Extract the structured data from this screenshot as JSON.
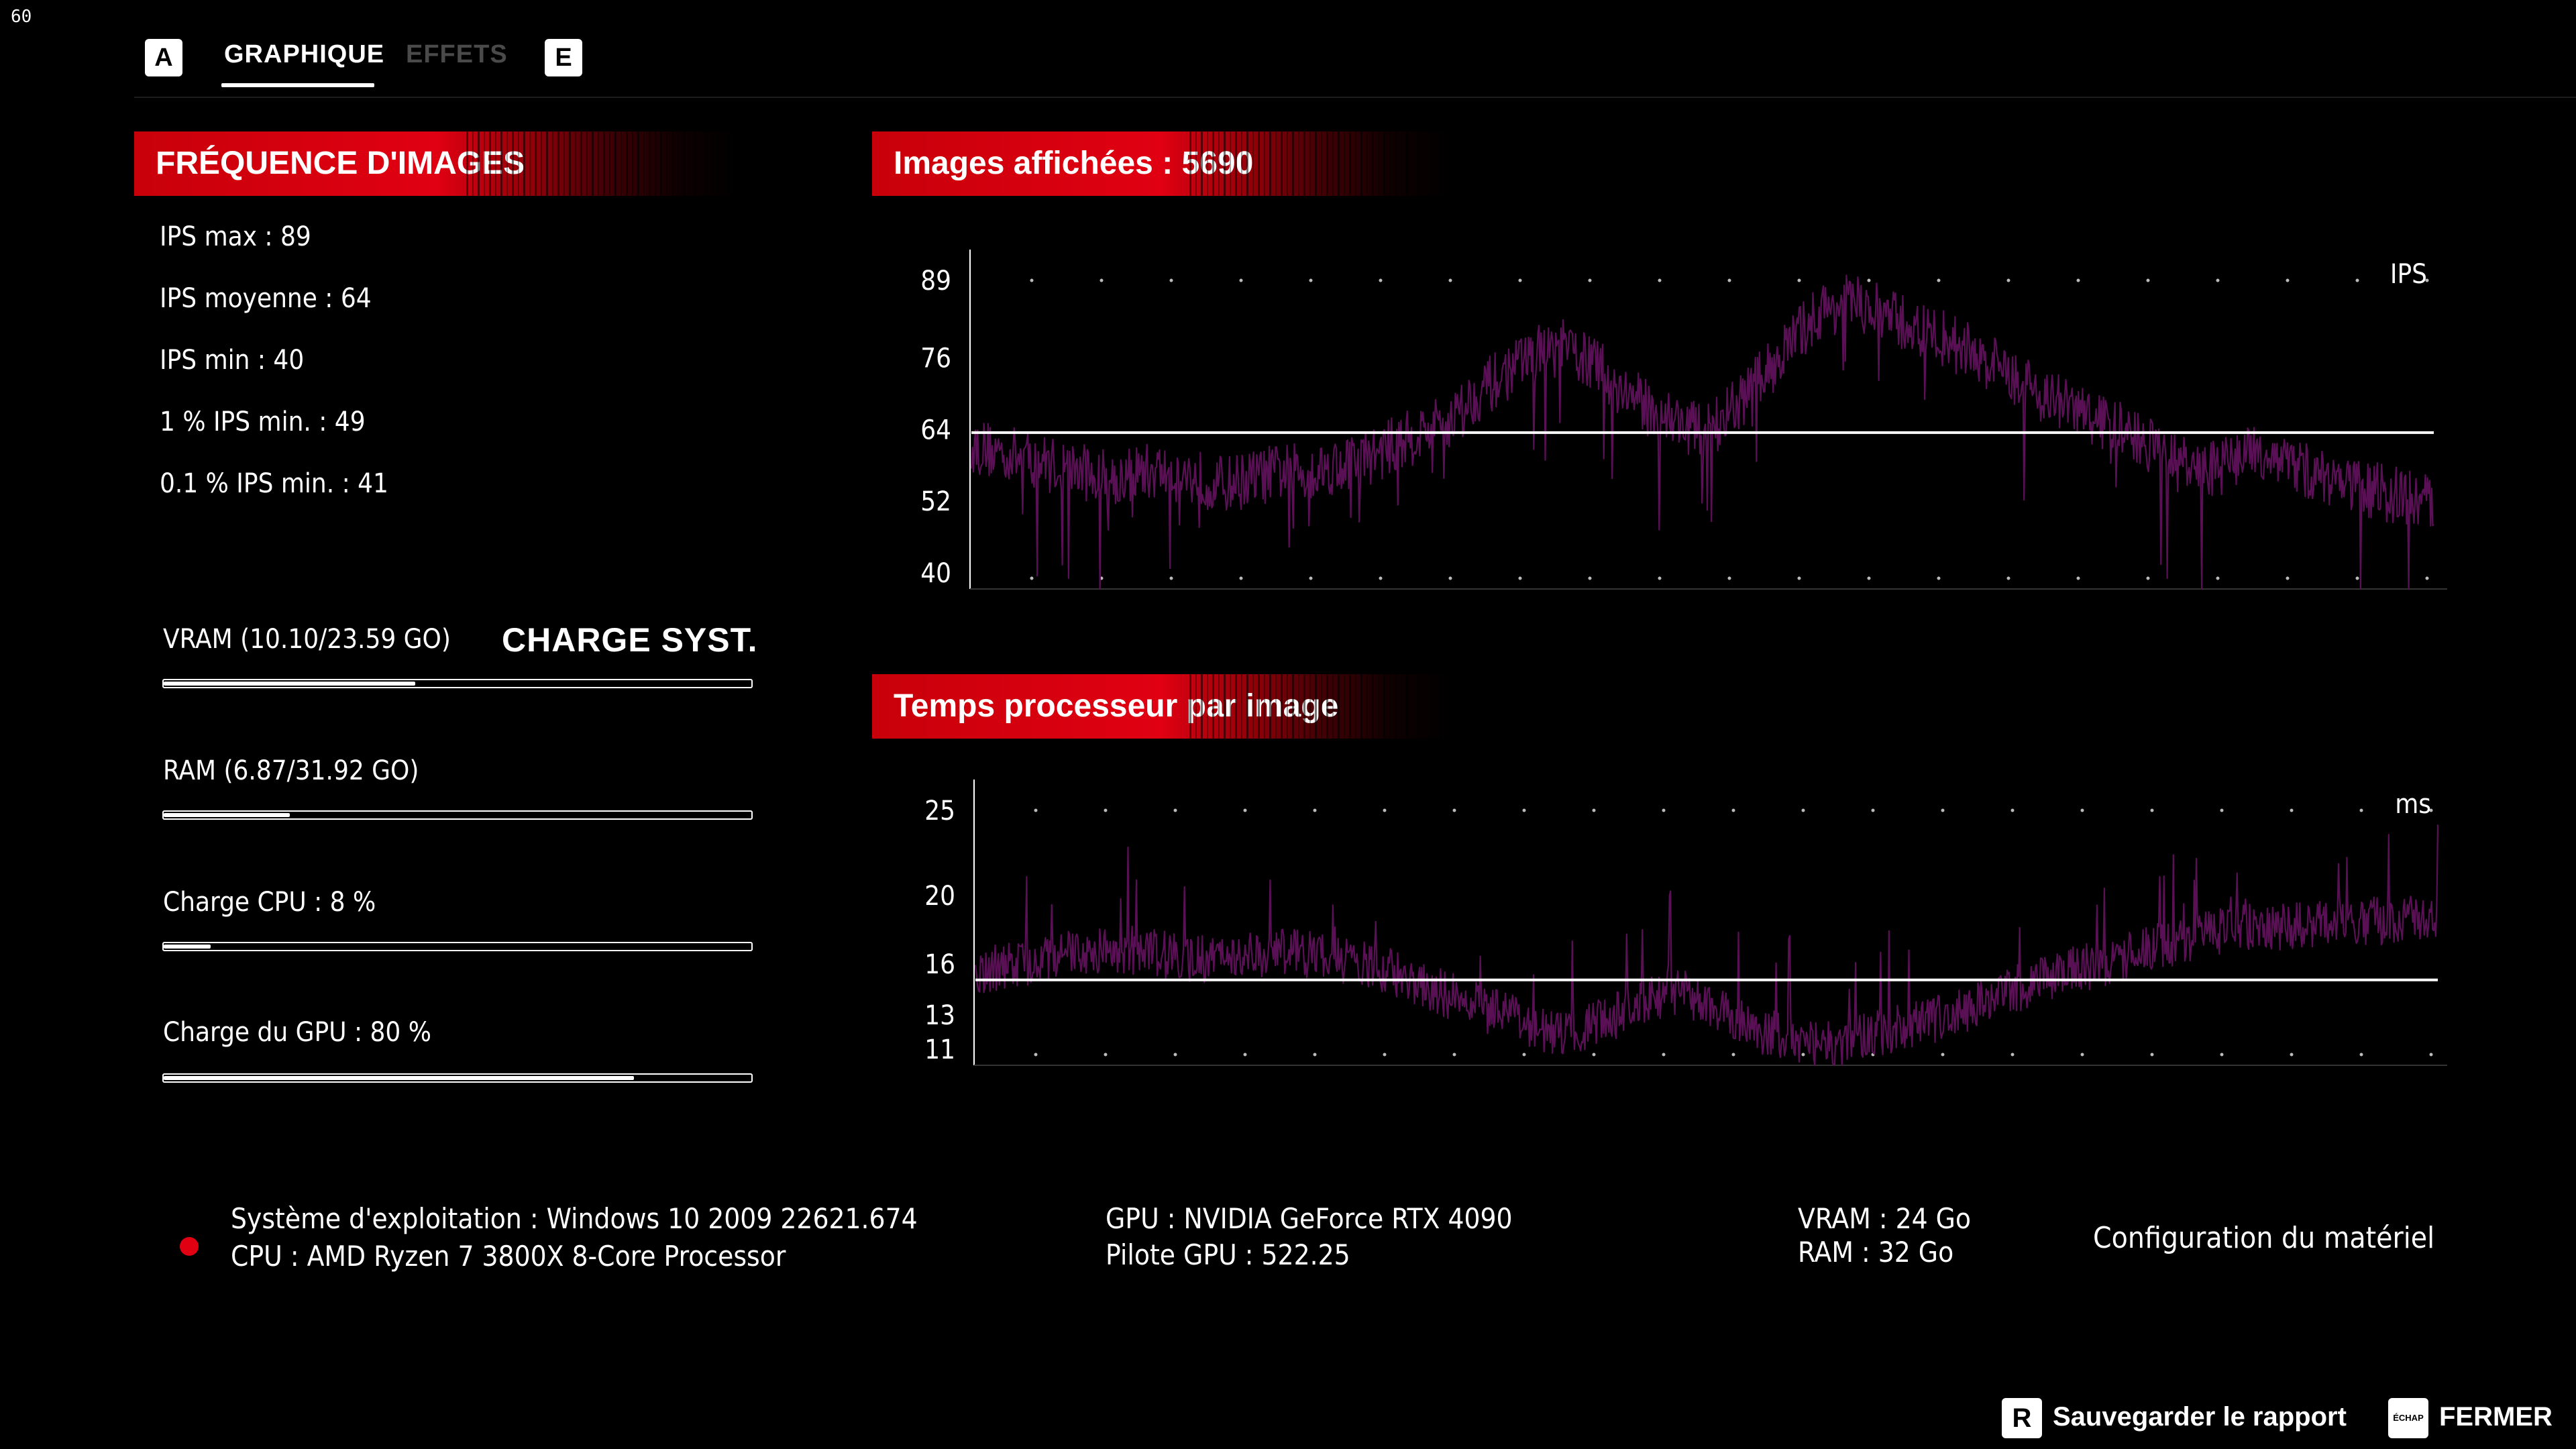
{
  "fps_counter": "60",
  "tabs": {
    "prev_key": "A",
    "next_key": "E",
    "items": [
      {
        "label": "GRAPHIQUE",
        "active": true
      },
      {
        "label": "EFFETS",
        "active": false
      }
    ]
  },
  "frame_rate": {
    "header": "FRÉQUENCE D'IMAGES",
    "stats": [
      "IPS max : 89",
      "IPS moyenne : 64",
      "IPS min : 40",
      "1 % IPS min. : 49",
      "0.1 % IPS min. : 41"
    ]
  },
  "system_load": {
    "title": "CHARGE SYST.",
    "items": [
      {
        "label": "VRAM (10.10/23.59 GO)",
        "fraction": 0.428
      },
      {
        "label": "RAM (6.87/31.92 GO)",
        "fraction": 0.215
      },
      {
        "label": "Charge CPU : 8 %",
        "fraction": 0.08
      },
      {
        "label": "Charge du GPU : 80 %",
        "fraction": 0.8
      }
    ]
  },
  "chart_data": [
    {
      "type": "line",
      "title": "Images affichées : 5690",
      "unit": "IPS",
      "y_ticks": [
        "89",
        "76",
        "64",
        "52",
        "40"
      ],
      "ylim": [
        40,
        89
      ],
      "average_line": 64,
      "series": [
        {
          "values": [
            62,
            61,
            60,
            59,
            58,
            57,
            58,
            58,
            57,
            56,
            57,
            58,
            58,
            59,
            60,
            62,
            64,
            66,
            70,
            73,
            76,
            77,
            75,
            71,
            68,
            66,
            64,
            67,
            72,
            77,
            82,
            84,
            83,
            81,
            79,
            78,
            75,
            73,
            70,
            68,
            66,
            64,
            62,
            59,
            58,
            60,
            61,
            59,
            57,
            56,
            55,
            54,
            53
          ]
        }
      ],
      "color": "#5a1055",
      "grid": "dotted"
    },
    {
      "type": "line",
      "title": "Temps processeur par image",
      "unit": "ms",
      "y_ticks": [
        "25",
        "20",
        "16",
        "13",
        "11"
      ],
      "ylim": [
        11,
        25
      ],
      "average_line": 15.5,
      "series": [
        {
          "values": [
            16,
            16.2,
            16.5,
            16.8,
            17,
            17.1,
            17,
            16.8,
            16.6,
            16.7,
            16.9,
            17,
            16.8,
            16.5,
            16.2,
            15.8,
            15.2,
            14.6,
            14,
            13.5,
            13,
            12.8,
            13.2,
            13.8,
            14.5,
            15,
            14.2,
            13.4,
            12.8,
            12.3,
            12,
            12.2,
            12.6,
            13,
            13.4,
            13.8,
            14.4,
            15,
            15.6,
            16,
            16.3,
            16.8,
            17.2,
            17.6,
            18,
            18.2,
            18.3,
            18.4,
            18.5,
            18.6,
            18.6,
            18.7,
            18.8
          ]
        }
      ],
      "color": "#5a1055",
      "grid": "dotted"
    }
  ],
  "system_info": {
    "os": "Système d'exploitation : Windows 10 2009 22621.674",
    "cpu": "CPU : AMD Ryzen 7 3800X 8-Core Processor",
    "gpu": "GPU : NVIDIA GeForce RTX 4090",
    "gpu_driver": "Pilote GPU : 522.25",
    "vram": "VRAM : 24 Go",
    "ram": "RAM : 32 Go",
    "hardware_config": "Configuration du matériel"
  },
  "footer": {
    "save_key": "R",
    "save_label": "Sauvegarder le rapport",
    "close_key": "ÉCHAP",
    "close_label": "FERMER"
  },
  "colors": {
    "accent_red": "#e00012",
    "graph_purple": "#5a1055",
    "inactive_tab": "#4a4a4a"
  }
}
